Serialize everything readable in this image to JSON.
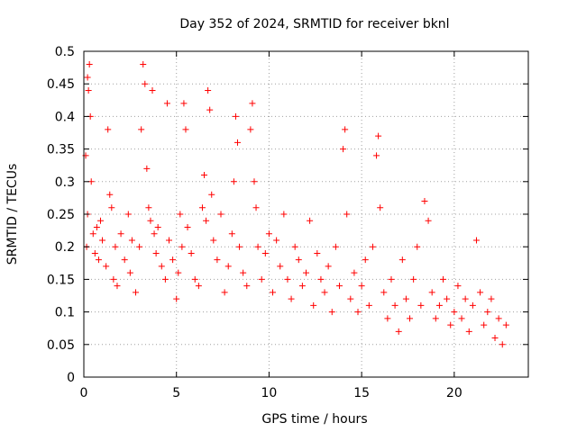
{
  "chart_data": {
    "type": "scatter",
    "title": "Day 352 of 2024, SRMTID for receiver bknl",
    "xlabel": "GPS time / hours",
    "ylabel": "SRMTID / TECUs",
    "xlim": [
      0,
      24
    ],
    "ylim": [
      0,
      0.5
    ],
    "xticks": [
      0,
      5,
      10,
      15,
      20
    ],
    "yticks": [
      0,
      0.05,
      0.1,
      0.15,
      0.2,
      0.25,
      0.3,
      0.35,
      0.4,
      0.45,
      0.5
    ],
    "xtick_labels": [
      "0",
      "5",
      "10",
      "15",
      "20"
    ],
    "ytick_labels": [
      "0",
      "0.05",
      "0.1",
      "0.15",
      "0.2",
      "0.25",
      "0.3",
      "0.35",
      "0.4",
      "0.45",
      "0.5"
    ],
    "grid": true,
    "marker": "+",
    "series": [
      {
        "color": "#ff0000",
        "points": [
          [
            0.1,
            0.34
          ],
          [
            0.2,
            0.46
          ],
          [
            0.25,
            0.44
          ],
          [
            0.3,
            0.48
          ],
          [
            0.35,
            0.4
          ],
          [
            0.4,
            0.3
          ],
          [
            0.15,
            0.2
          ],
          [
            0.2,
            0.25
          ],
          [
            0.5,
            0.22
          ],
          [
            0.6,
            0.19
          ],
          [
            0.7,
            0.23
          ],
          [
            0.8,
            0.18
          ],
          [
            0.9,
            0.24
          ],
          [
            1.0,
            0.21
          ],
          [
            1.2,
            0.17
          ],
          [
            1.3,
            0.38
          ],
          [
            1.4,
            0.28
          ],
          [
            1.5,
            0.26
          ],
          [
            1.6,
            0.15
          ],
          [
            1.7,
            0.2
          ],
          [
            1.8,
            0.14
          ],
          [
            2.0,
            0.22
          ],
          [
            2.2,
            0.18
          ],
          [
            2.4,
            0.25
          ],
          [
            2.5,
            0.16
          ],
          [
            2.6,
            0.21
          ],
          [
            2.8,
            0.13
          ],
          [
            3.0,
            0.2
          ],
          [
            3.1,
            0.38
          ],
          [
            3.2,
            0.48
          ],
          [
            3.3,
            0.45
          ],
          [
            3.4,
            0.32
          ],
          [
            3.5,
            0.26
          ],
          [
            3.6,
            0.24
          ],
          [
            3.7,
            0.44
          ],
          [
            3.8,
            0.22
          ],
          [
            3.9,
            0.19
          ],
          [
            4.0,
            0.23
          ],
          [
            4.2,
            0.17
          ],
          [
            4.4,
            0.15
          ],
          [
            4.5,
            0.42
          ],
          [
            4.6,
            0.21
          ],
          [
            4.8,
            0.18
          ],
          [
            5.0,
            0.12
          ],
          [
            5.1,
            0.16
          ],
          [
            5.2,
            0.25
          ],
          [
            5.3,
            0.2
          ],
          [
            5.4,
            0.42
          ],
          [
            5.5,
            0.38
          ],
          [
            5.6,
            0.23
          ],
          [
            5.8,
            0.19
          ],
          [
            6.0,
            0.15
          ],
          [
            6.2,
            0.14
          ],
          [
            6.4,
            0.26
          ],
          [
            6.5,
            0.31
          ],
          [
            6.6,
            0.24
          ],
          [
            6.7,
            0.44
          ],
          [
            6.8,
            0.41
          ],
          [
            6.9,
            0.28
          ],
          [
            7.0,
            0.21
          ],
          [
            7.2,
            0.18
          ],
          [
            7.4,
            0.25
          ],
          [
            7.6,
            0.13
          ],
          [
            7.8,
            0.17
          ],
          [
            8.0,
            0.22
          ],
          [
            8.1,
            0.3
          ],
          [
            8.2,
            0.4
          ],
          [
            8.3,
            0.36
          ],
          [
            8.4,
            0.2
          ],
          [
            8.6,
            0.16
          ],
          [
            8.8,
            0.14
          ],
          [
            9.0,
            0.38
          ],
          [
            9.1,
            0.42
          ],
          [
            9.2,
            0.3
          ],
          [
            9.3,
            0.26
          ],
          [
            9.4,
            0.2
          ],
          [
            9.6,
            0.15
          ],
          [
            9.8,
            0.19
          ],
          [
            10.0,
            0.22
          ],
          [
            10.2,
            0.13
          ],
          [
            10.4,
            0.21
          ],
          [
            10.6,
            0.17
          ],
          [
            10.8,
            0.25
          ],
          [
            11.0,
            0.15
          ],
          [
            11.2,
            0.12
          ],
          [
            11.4,
            0.2
          ],
          [
            11.6,
            0.18
          ],
          [
            11.8,
            0.14
          ],
          [
            12.0,
            0.16
          ],
          [
            12.2,
            0.24
          ],
          [
            12.4,
            0.11
          ],
          [
            12.6,
            0.19
          ],
          [
            12.8,
            0.15
          ],
          [
            13.0,
            0.13
          ],
          [
            13.2,
            0.17
          ],
          [
            13.4,
            0.1
          ],
          [
            13.6,
            0.2
          ],
          [
            13.8,
            0.14
          ],
          [
            14.0,
            0.35
          ],
          [
            14.1,
            0.38
          ],
          [
            14.2,
            0.25
          ],
          [
            14.4,
            0.12
          ],
          [
            14.6,
            0.16
          ],
          [
            14.8,
            0.1
          ],
          [
            15.0,
            0.14
          ],
          [
            15.2,
            0.18
          ],
          [
            15.4,
            0.11
          ],
          [
            15.6,
            0.2
          ],
          [
            15.8,
            0.34
          ],
          [
            15.9,
            0.37
          ],
          [
            16.0,
            0.26
          ],
          [
            16.2,
            0.13
          ],
          [
            16.4,
            0.09
          ],
          [
            16.6,
            0.15
          ],
          [
            16.8,
            0.11
          ],
          [
            17.0,
            0.07
          ],
          [
            17.2,
            0.18
          ],
          [
            17.4,
            0.12
          ],
          [
            17.6,
            0.09
          ],
          [
            17.8,
            0.15
          ],
          [
            18.0,
            0.2
          ],
          [
            18.2,
            0.11
          ],
          [
            18.4,
            0.27
          ],
          [
            18.6,
            0.24
          ],
          [
            18.8,
            0.13
          ],
          [
            19.0,
            0.09
          ],
          [
            19.2,
            0.11
          ],
          [
            19.4,
            0.15
          ],
          [
            19.6,
            0.12
          ],
          [
            19.8,
            0.08
          ],
          [
            20.0,
            0.1
          ],
          [
            20.2,
            0.14
          ],
          [
            20.4,
            0.09
          ],
          [
            20.6,
            0.12
          ],
          [
            20.8,
            0.07
          ],
          [
            21.0,
            0.11
          ],
          [
            21.2,
            0.21
          ],
          [
            21.4,
            0.13
          ],
          [
            21.6,
            0.08
          ],
          [
            21.8,
            0.1
          ],
          [
            22.0,
            0.12
          ],
          [
            22.2,
            0.06
          ],
          [
            22.4,
            0.09
          ],
          [
            22.6,
            0.05
          ],
          [
            22.8,
            0.08
          ]
        ]
      }
    ]
  }
}
